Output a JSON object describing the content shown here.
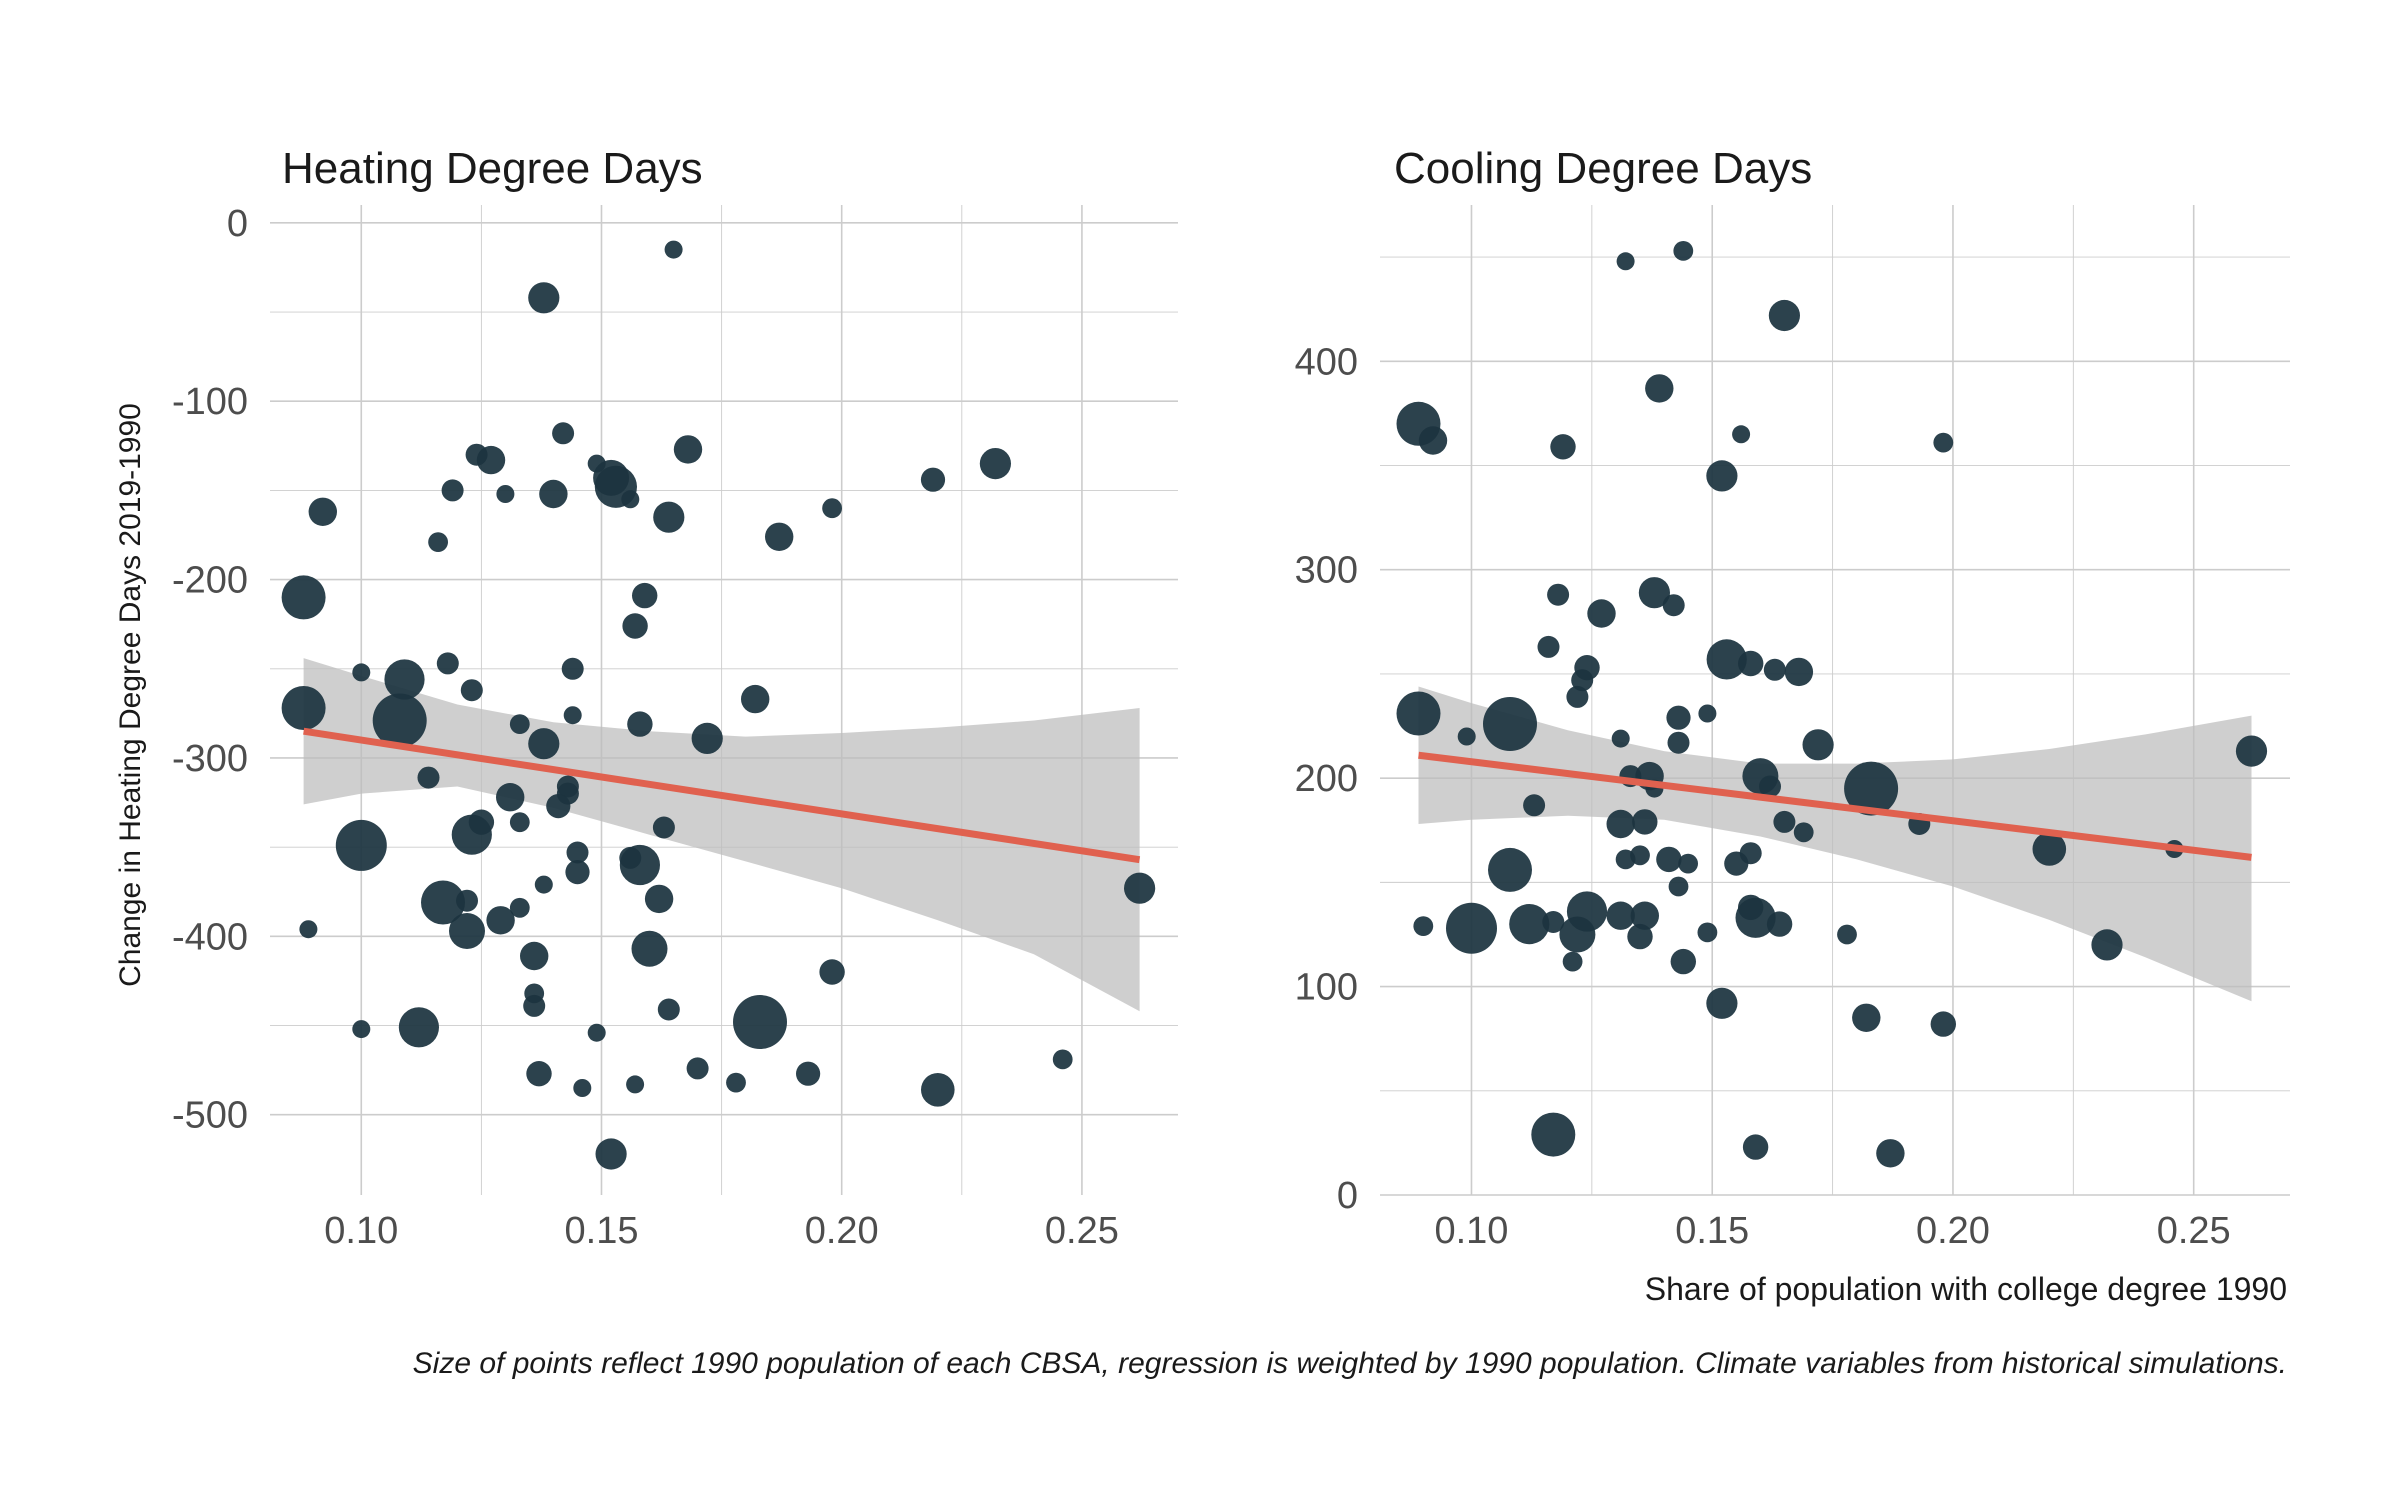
{
  "caption": "Size of points reflect 1990 population of each CBSA, regression is weighted by 1990 population. Climate variables from historical simulations.",
  "colors": {
    "point": "#1c3440",
    "line": "#e0614f",
    "band": "#bdbdbd",
    "grid": "#cccccc",
    "background": "#ffffff"
  },
  "chart_data": [
    {
      "type": "scatter",
      "title": "Heating Degree Days",
      "xlabel": "",
      "ylabel": "Change in Heating Degree Days 2019-1990",
      "xlim": [
        0.081,
        0.27
      ],
      "ylim": [
        -545,
        10
      ],
      "xticks": [
        0.1,
        0.15,
        0.2,
        0.25
      ],
      "xtick_labels": [
        "0.10",
        "0.15",
        "0.20",
        "0.25"
      ],
      "yticks": [
        0,
        -100,
        -200,
        -300,
        -400,
        -500
      ],
      "ytick_labels": [
        "0",
        "-100",
        "-200",
        "-300",
        "-400",
        "-500"
      ],
      "grid": true,
      "regression": {
        "x": [
          0.088,
          0.262
        ],
        "y": [
          -285,
          -357
        ]
      },
      "confidence_band": {
        "x": [
          0.088,
          0.1,
          0.12,
          0.14,
          0.16,
          0.18,
          0.2,
          0.22,
          0.24,
          0.262
        ],
        "lower": [
          -326,
          -320,
          -316,
          -328,
          -343,
          -358,
          -373,
          -391,
          -410,
          -442
        ],
        "upper": [
          -244,
          -254,
          -270,
          -280,
          -285,
          -288,
          -286,
          -283,
          -279,
          -272
        ]
      },
      "points": [
        {
          "x": 0.165,
          "y": -15,
          "size": 1
        },
        {
          "x": 0.138,
          "y": -42,
          "size": 3
        },
        {
          "x": 0.142,
          "y": -118,
          "size": 1.5
        },
        {
          "x": 0.168,
          "y": -127,
          "size": 2.5
        },
        {
          "x": 0.124,
          "y": -130,
          "size": 1.5
        },
        {
          "x": 0.127,
          "y": -133,
          "size": 2.5
        },
        {
          "x": 0.232,
          "y": -135,
          "size": 3
        },
        {
          "x": 0.149,
          "y": -135,
          "size": 1
        },
        {
          "x": 0.152,
          "y": -143,
          "size": 4
        },
        {
          "x": 0.219,
          "y": -144,
          "size": 1.8
        },
        {
          "x": 0.153,
          "y": -148,
          "size": 5.5
        },
        {
          "x": 0.119,
          "y": -150,
          "size": 1.5
        },
        {
          "x": 0.13,
          "y": -152,
          "size": 1
        },
        {
          "x": 0.14,
          "y": -152,
          "size": 2.5
        },
        {
          "x": 0.156,
          "y": -155,
          "size": 1
        },
        {
          "x": 0.198,
          "y": -160,
          "size": 1.2
        },
        {
          "x": 0.092,
          "y": -162,
          "size": 2.5
        },
        {
          "x": 0.164,
          "y": -165,
          "size": 3
        },
        {
          "x": 0.187,
          "y": -176,
          "size": 2.5
        },
        {
          "x": 0.116,
          "y": -179,
          "size": 1.2
        },
        {
          "x": 0.088,
          "y": -210,
          "size": 6
        },
        {
          "x": 0.159,
          "y": -209,
          "size": 2
        },
        {
          "x": 0.157,
          "y": -226,
          "size": 2
        },
        {
          "x": 0.118,
          "y": -247,
          "size": 1.5
        },
        {
          "x": 0.144,
          "y": -250,
          "size": 1.5
        },
        {
          "x": 0.1,
          "y": -252,
          "size": 1
        },
        {
          "x": 0.109,
          "y": -256,
          "size": 5
        },
        {
          "x": 0.123,
          "y": -262,
          "size": 1.5
        },
        {
          "x": 0.182,
          "y": -267,
          "size": 2.5
        },
        {
          "x": 0.088,
          "y": -272,
          "size": 6
        },
        {
          "x": 0.144,
          "y": -276,
          "size": 1
        },
        {
          "x": 0.108,
          "y": -279,
          "size": 9
        },
        {
          "x": 0.158,
          "y": -281,
          "size": 2
        },
        {
          "x": 0.133,
          "y": -281,
          "size": 1.2
        },
        {
          "x": 0.172,
          "y": -289,
          "size": 3
        },
        {
          "x": 0.138,
          "y": -292,
          "size": 3
        },
        {
          "x": 0.114,
          "y": -311,
          "size": 1.5
        },
        {
          "x": 0.143,
          "y": -316,
          "size": 1.5
        },
        {
          "x": 0.143,
          "y": -320,
          "size": 1.5
        },
        {
          "x": 0.131,
          "y": -322,
          "size": 2.5
        },
        {
          "x": 0.141,
          "y": -327,
          "size": 1.8
        },
        {
          "x": 0.133,
          "y": -336,
          "size": 1.2
        },
        {
          "x": 0.125,
          "y": -336,
          "size": 2
        },
        {
          "x": 0.163,
          "y": -339,
          "size": 1.5
        },
        {
          "x": 0.123,
          "y": -343,
          "size": 5
        },
        {
          "x": 0.1,
          "y": -349,
          "size": 8
        },
        {
          "x": 0.145,
          "y": -353,
          "size": 1.5
        },
        {
          "x": 0.156,
          "y": -356,
          "size": 1.5
        },
        {
          "x": 0.158,
          "y": -360,
          "size": 5
        },
        {
          "x": 0.145,
          "y": -364,
          "size": 1.8
        },
        {
          "x": 0.138,
          "y": -371,
          "size": 1
        },
        {
          "x": 0.162,
          "y": -379,
          "size": 2.5
        },
        {
          "x": 0.122,
          "y": -380,
          "size": 1.5
        },
        {
          "x": 0.117,
          "y": -381,
          "size": 6
        },
        {
          "x": 0.133,
          "y": -384,
          "size": 1.2
        },
        {
          "x": 0.129,
          "y": -391,
          "size": 2.5
        },
        {
          "x": 0.089,
          "y": -396,
          "size": 1
        },
        {
          "x": 0.122,
          "y": -397,
          "size": 4
        },
        {
          "x": 0.16,
          "y": -407,
          "size": 4
        },
        {
          "x": 0.136,
          "y": -411,
          "size": 2.5
        },
        {
          "x": 0.198,
          "y": -420,
          "size": 2
        },
        {
          "x": 0.136,
          "y": -432,
          "size": 1.2
        },
        {
          "x": 0.136,
          "y": -439,
          "size": 1.5
        },
        {
          "x": 0.164,
          "y": -441,
          "size": 1.5
        },
        {
          "x": 0.183,
          "y": -448,
          "size": 9
        },
        {
          "x": 0.1,
          "y": -452,
          "size": 1
        },
        {
          "x": 0.112,
          "y": -451,
          "size": 5
        },
        {
          "x": 0.149,
          "y": -454,
          "size": 1
        },
        {
          "x": 0.17,
          "y": -474,
          "size": 1.5
        },
        {
          "x": 0.137,
          "y": -477,
          "size": 2
        },
        {
          "x": 0.193,
          "y": -477,
          "size": 1.8
        },
        {
          "x": 0.246,
          "y": -469,
          "size": 1.2
        },
        {
          "x": 0.178,
          "y": -482,
          "size": 1.2
        },
        {
          "x": 0.157,
          "y": -483,
          "size": 1
        },
        {
          "x": 0.146,
          "y": -485,
          "size": 1
        },
        {
          "x": 0.22,
          "y": -486,
          "size": 3.5
        },
        {
          "x": 0.152,
          "y": -522,
          "size": 3
        },
        {
          "x": 0.262,
          "y": -373,
          "size": 3
        }
      ]
    },
    {
      "type": "scatter",
      "title": "Cooling Degree Days",
      "xlabel": "Share of population with college degree 1990",
      "ylabel": "",
      "xlim": [
        0.081,
        0.27
      ],
      "ylim": [
        0,
        475
      ],
      "xticks": [
        0.1,
        0.15,
        0.2,
        0.25
      ],
      "xtick_labels": [
        "0.10",
        "0.15",
        "0.20",
        "0.25"
      ],
      "yticks": [
        0,
        100,
        200,
        300,
        400
      ],
      "ytick_labels": [
        "0",
        "100",
        "200",
        "300",
        "400"
      ],
      "grid": true,
      "regression": {
        "x": [
          0.089,
          0.262
        ],
        "y": [
          211,
          162
        ]
      },
      "confidence_band": {
        "x": [
          0.089,
          0.1,
          0.12,
          0.14,
          0.16,
          0.18,
          0.2,
          0.22,
          0.24,
          0.262
        ],
        "lower": [
          178,
          180,
          182,
          180,
          172,
          161,
          148,
          132,
          114,
          93
        ],
        "upper": [
          244,
          236,
          223,
          213,
          207,
          207,
          209,
          214,
          221,
          230
        ]
      },
      "points": [
        {
          "x": 0.144,
          "y": 453,
          "size": 1.2
        },
        {
          "x": 0.132,
          "y": 448,
          "size": 1
        },
        {
          "x": 0.165,
          "y": 422,
          "size": 3
        },
        {
          "x": 0.139,
          "y": 387,
          "size": 2.5
        },
        {
          "x": 0.089,
          "y": 370,
          "size": 6
        },
        {
          "x": 0.156,
          "y": 365,
          "size": 1
        },
        {
          "x": 0.092,
          "y": 362,
          "size": 2.5
        },
        {
          "x": 0.198,
          "y": 361,
          "size": 1.2
        },
        {
          "x": 0.119,
          "y": 359,
          "size": 2
        },
        {
          "x": 0.152,
          "y": 345,
          "size": 3
        },
        {
          "x": 0.138,
          "y": 289,
          "size": 3
        },
        {
          "x": 0.118,
          "y": 288,
          "size": 1.5
        },
        {
          "x": 0.142,
          "y": 283,
          "size": 1.5
        },
        {
          "x": 0.127,
          "y": 279,
          "size": 2.5
        },
        {
          "x": 0.116,
          "y": 263,
          "size": 1.5
        },
        {
          "x": 0.153,
          "y": 257,
          "size": 5
        },
        {
          "x": 0.158,
          "y": 255,
          "size": 2
        },
        {
          "x": 0.124,
          "y": 253,
          "size": 2
        },
        {
          "x": 0.163,
          "y": 252,
          "size": 1.5
        },
        {
          "x": 0.168,
          "y": 251,
          "size": 2.5
        },
        {
          "x": 0.123,
          "y": 247,
          "size": 1.5
        },
        {
          "x": 0.122,
          "y": 239,
          "size": 1.5
        },
        {
          "x": 0.089,
          "y": 231,
          "size": 6
        },
        {
          "x": 0.149,
          "y": 231,
          "size": 1
        },
        {
          "x": 0.143,
          "y": 229,
          "size": 1.8
        },
        {
          "x": 0.108,
          "y": 226,
          "size": 9
        },
        {
          "x": 0.099,
          "y": 220,
          "size": 1
        },
        {
          "x": 0.131,
          "y": 219,
          "size": 1
        },
        {
          "x": 0.172,
          "y": 216,
          "size": 3
        },
        {
          "x": 0.143,
          "y": 217,
          "size": 1.5
        },
        {
          "x": 0.262,
          "y": 213,
          "size": 3
        },
        {
          "x": 0.16,
          "y": 201,
          "size": 4
        },
        {
          "x": 0.133,
          "y": 201,
          "size": 1.5
        },
        {
          "x": 0.137,
          "y": 201,
          "size": 2.5
        },
        {
          "x": 0.162,
          "y": 196,
          "size": 1.5
        },
        {
          "x": 0.138,
          "y": 195,
          "size": 1
        },
        {
          "x": 0.183,
          "y": 195,
          "size": 9
        },
        {
          "x": 0.113,
          "y": 187,
          "size": 1.5
        },
        {
          "x": 0.136,
          "y": 179,
          "size": 2
        },
        {
          "x": 0.131,
          "y": 178,
          "size": 2.5
        },
        {
          "x": 0.165,
          "y": 179,
          "size": 1.5
        },
        {
          "x": 0.193,
          "y": 178,
          "size": 1.5
        },
        {
          "x": 0.169,
          "y": 174,
          "size": 1.2
        },
        {
          "x": 0.158,
          "y": 164,
          "size": 1.5
        },
        {
          "x": 0.135,
          "y": 163,
          "size": 1.2
        },
        {
          "x": 0.22,
          "y": 166,
          "size": 3.5
        },
        {
          "x": 0.246,
          "y": 166,
          "size": 1
        },
        {
          "x": 0.132,
          "y": 161,
          "size": 1.2
        },
        {
          "x": 0.141,
          "y": 161,
          "size": 2
        },
        {
          "x": 0.145,
          "y": 159,
          "size": 1.2
        },
        {
          "x": 0.155,
          "y": 159,
          "size": 1.8
        },
        {
          "x": 0.108,
          "y": 156,
          "size": 6
        },
        {
          "x": 0.143,
          "y": 148,
          "size": 1.2
        },
        {
          "x": 0.158,
          "y": 138,
          "size": 2
        },
        {
          "x": 0.124,
          "y": 136,
          "size": 5
        },
        {
          "x": 0.131,
          "y": 134,
          "size": 2.5
        },
        {
          "x": 0.136,
          "y": 134,
          "size": 2.5
        },
        {
          "x": 0.159,
          "y": 133,
          "size": 5
        },
        {
          "x": 0.112,
          "y": 130,
          "size": 5
        },
        {
          "x": 0.117,
          "y": 131,
          "size": 1.5
        },
        {
          "x": 0.164,
          "y": 130,
          "size": 2
        },
        {
          "x": 0.1,
          "y": 128,
          "size": 8
        },
        {
          "x": 0.09,
          "y": 129,
          "size": 1.2
        },
        {
          "x": 0.122,
          "y": 125,
          "size": 4
        },
        {
          "x": 0.149,
          "y": 126,
          "size": 1.2
        },
        {
          "x": 0.178,
          "y": 125,
          "size": 1.2
        },
        {
          "x": 0.135,
          "y": 124,
          "size": 2
        },
        {
          "x": 0.232,
          "y": 120,
          "size": 3
        },
        {
          "x": 0.121,
          "y": 112,
          "size": 1.2
        },
        {
          "x": 0.144,
          "y": 112,
          "size": 2
        },
        {
          "x": 0.152,
          "y": 92,
          "size": 3
        },
        {
          "x": 0.182,
          "y": 85,
          "size": 2.5
        },
        {
          "x": 0.198,
          "y": 82,
          "size": 2
        },
        {
          "x": 0.117,
          "y": 29,
          "size": 6
        },
        {
          "x": 0.159,
          "y": 23,
          "size": 2
        },
        {
          "x": 0.187,
          "y": 20,
          "size": 2.5
        }
      ]
    }
  ]
}
